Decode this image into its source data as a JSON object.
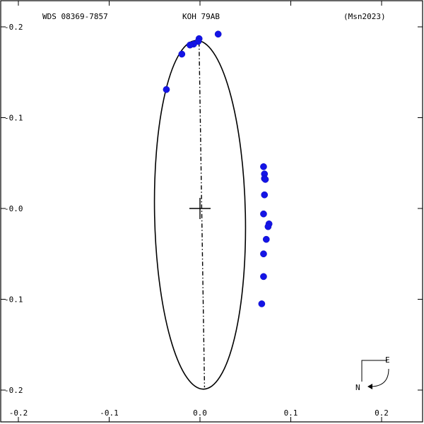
{
  "header": {
    "left": "WDS 08369-7857",
    "center": "KOH  79AB",
    "right": "(Msn2023)"
  },
  "compass": {
    "east_label": "E",
    "north_label": "N"
  },
  "chart_data": {
    "type": "scatter",
    "title": "",
    "xlabel": "",
    "ylabel": "",
    "xlim": [
      -0.205,
      0.24
    ],
    "ylim": [
      -0.205,
      0.205
    ],
    "x_ticks": [
      -0.2,
      -0.1,
      0.0,
      0.1,
      0.2
    ],
    "x_tick_labels": [
      "-0.2",
      "-0.1",
      "0.0",
      "0.1",
      "0.2"
    ],
    "y_ticks": [
      -0.2,
      -0.1,
      0.0,
      0.1,
      0.2
    ],
    "y_tick_labels": [
      "-0.2",
      "-0.1",
      "-0.0",
      "-0.1",
      "-0.2"
    ],
    "grid": false,
    "orbit_ellipse": {
      "center": [
        0.0,
        -0.007
      ],
      "semi_major": 0.192,
      "semi_minor": 0.05,
      "rotation_deg_from_vertical": -1.2
    },
    "primary_marker": [
      0.0,
      0.0
    ],
    "line_of_nodes": {
      "from": [
        -0.001,
        0.183
      ],
      "to": [
        0.005,
        -0.197
      ]
    },
    "series": [
      {
        "points": [
          [
            0.02,
            0.192
          ],
          [
            -0.001,
            0.187
          ],
          [
            -0.002,
            0.184
          ],
          [
            -0.007,
            0.181
          ],
          [
            -0.011,
            0.18
          ],
          [
            -0.02,
            0.17
          ],
          [
            -0.037,
            0.131
          ],
          [
            0.07,
            0.046
          ],
          [
            0.071,
            0.038
          ],
          [
            0.071,
            0.033
          ],
          [
            0.072,
            0.032
          ],
          [
            0.071,
            0.015
          ],
          [
            0.07,
            -0.006
          ],
          [
            0.076,
            -0.017
          ],
          [
            0.075,
            -0.02
          ],
          [
            0.073,
            -0.034
          ],
          [
            0.07,
            -0.05
          ],
          [
            0.07,
            -0.075
          ],
          [
            0.068,
            -0.105
          ]
        ]
      }
    ]
  }
}
